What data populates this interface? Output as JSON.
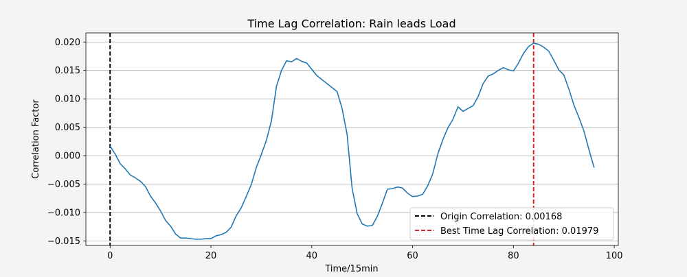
{
  "chart_data": {
    "type": "line",
    "title": "Time Lag Correlation: Rain leads Load",
    "xlabel": "Time/15min",
    "ylabel": "Correlation Factor",
    "xlim": [
      -4.8,
      100.8
    ],
    "ylim": [
      -0.0158,
      0.0216
    ],
    "xticks": [
      0,
      20,
      40,
      60,
      80,
      100
    ],
    "xtick_labels": [
      "0",
      "20",
      "40",
      "60",
      "80",
      "100"
    ],
    "yticks": [
      -0.015,
      -0.01,
      -0.005,
      0.0,
      0.005,
      0.01,
      0.015,
      0.02
    ],
    "ytick_labels": [
      "−0.015",
      "−0.010",
      "−0.005",
      "0.000",
      "0.005",
      "0.010",
      "0.015",
      "0.020"
    ],
    "grid": "horizontal",
    "legend_position": "bottom-right",
    "series": [
      {
        "color": "#1f77b4",
        "x": [
          0,
          1,
          2,
          3,
          4,
          5,
          6,
          7,
          8,
          9,
          10,
          11,
          12,
          13,
          14,
          15,
          16,
          17,
          18,
          19,
          20,
          21,
          22,
          23,
          24,
          25,
          26,
          27,
          28,
          29,
          30,
          31,
          32,
          33,
          34,
          35,
          36,
          37,
          38,
          39,
          40,
          41,
          42,
          43,
          44,
          45,
          46,
          47,
          48,
          49,
          50,
          51,
          52,
          53,
          54,
          55,
          56,
          57,
          58,
          59,
          60,
          61,
          62,
          63,
          64,
          65,
          66,
          67,
          68,
          69,
          70,
          71,
          72,
          73,
          74,
          75,
          76,
          77,
          78,
          79,
          80,
          81,
          82,
          83,
          84,
          85,
          86,
          87,
          88,
          89,
          90,
          91,
          92,
          93,
          94,
          95,
          96
        ],
        "y": [
          0.00168,
          0.0003,
          -0.0014,
          -0.0023,
          -0.0034,
          -0.0039,
          -0.0045,
          -0.0054,
          -0.0071,
          -0.0083,
          -0.0097,
          -0.0114,
          -0.0124,
          -0.0138,
          -0.0145,
          -0.0145,
          -0.0146,
          -0.0147,
          -0.0147,
          -0.0146,
          -0.0146,
          -0.0141,
          -0.0139,
          -0.0135,
          -0.0126,
          -0.0106,
          -0.0092,
          -0.0072,
          -0.0051,
          -0.0021,
          0.0002,
          0.0027,
          0.0061,
          0.0122,
          0.015,
          0.0167,
          0.0165,
          0.0171,
          0.0166,
          0.0163,
          0.0152,
          0.0141,
          0.0134,
          0.0127,
          0.012,
          0.0113,
          0.0084,
          0.0038,
          -0.0057,
          -0.0102,
          -0.012,
          -0.0124,
          -0.0123,
          -0.0107,
          -0.0084,
          -0.0059,
          -0.0058,
          -0.0055,
          -0.0057,
          -0.0066,
          -0.0072,
          -0.0071,
          -0.0068,
          -0.0053,
          -0.0032,
          0.0003,
          0.0028,
          0.0049,
          0.0064,
          0.0086,
          0.0078,
          0.0083,
          0.0088,
          0.0104,
          0.0127,
          0.014,
          0.0144,
          0.015,
          0.0155,
          0.0151,
          0.0149,
          0.0163,
          0.018,
          0.0192,
          0.01979,
          0.0196,
          0.0191,
          0.0184,
          0.0168,
          0.0151,
          0.0142,
          0.0117,
          0.0089,
          0.0067,
          0.0043,
          0.001,
          -0.0021
        ]
      }
    ],
    "vlines": [
      {
        "x": 0,
        "color": "#000000",
        "style": "dashed",
        "label": "Origin Correlation: 0.00168"
      },
      {
        "x": 84,
        "color": "#d62728",
        "style": "dashed",
        "label": "Best Time Lag Correlation: 0.01979"
      }
    ]
  }
}
